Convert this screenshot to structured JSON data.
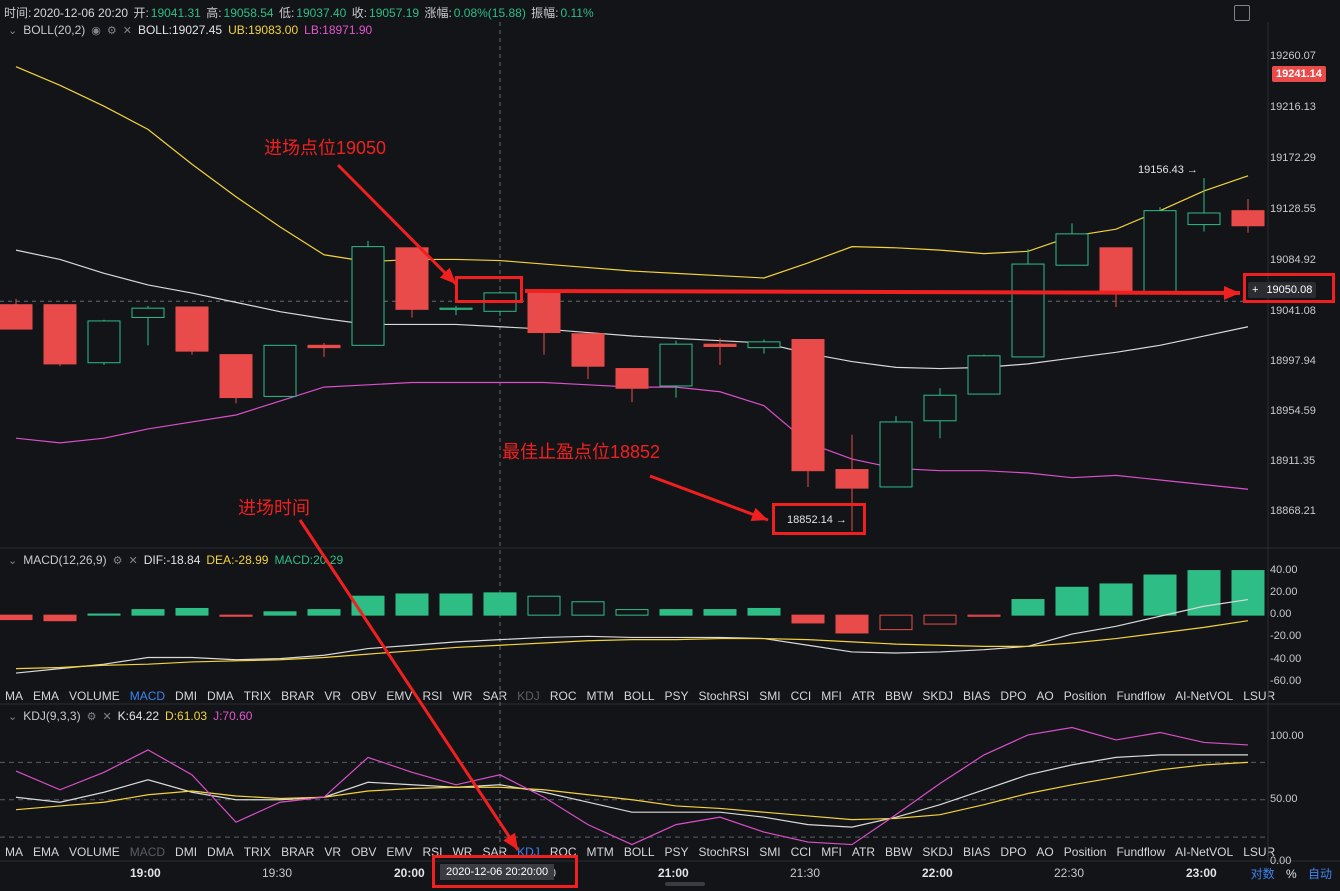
{
  "header": {
    "time_label": "时间:",
    "time_value": "2020-12-06 20:20",
    "open_label": "开:",
    "open_value": "19041.31",
    "high_label": "高:",
    "high_value": "19058.54",
    "low_label": "低:",
    "low_value": "19037.40",
    "close_label": "收:",
    "close_value": "19057.19",
    "change_label": "涨幅:",
    "change_value": "0.08%(15.88)",
    "amp_label": "振幅:",
    "amp_value": "0.11%"
  },
  "boll": {
    "name": "BOLL(20,2)",
    "mid_label": "BOLL:",
    "mid_value": "19027.45",
    "ub_label": "UB:",
    "ub_value": "19083.00",
    "lb_label": "LB:",
    "lb_value": "18971.90"
  },
  "macd": {
    "name": "MACD(12,26,9)",
    "dif_label": "DIF:",
    "dif_value": "-18.84",
    "dea_label": "DEA:",
    "dea_value": "-28.99",
    "macd_label": "MACD:",
    "macd_value": "20.29"
  },
  "kdj": {
    "name": "KDJ(9,3,3)",
    "k_label": "K:",
    "k_value": "64.22",
    "d_label": "D:",
    "d_value": "61.03",
    "j_label": "J:",
    "j_value": "70.60"
  },
  "indicator_tabs": [
    "MA",
    "EMA",
    "VOLUME",
    "MACD",
    "DMI",
    "DMA",
    "TRIX",
    "BRAR",
    "VR",
    "OBV",
    "EMV",
    "RSI",
    "WR",
    "SAR",
    "KDJ",
    "ROC",
    "MTM",
    "BOLL",
    "PSY",
    "StochRSI",
    "SMI",
    "CCI",
    "MFI",
    "ATR",
    "BBW",
    "SKDJ",
    "BIAS",
    "DPO",
    "AO",
    "Position",
    "Fundflow",
    "AI-NetVOL",
    "LSUR"
  ],
  "main_yaxis": [
    "19260.07",
    "19216.13",
    "19172.29",
    "19128.55",
    "19084.92",
    "19041.08",
    "18997.94",
    "18954.59",
    "18911.35",
    "18868.21"
  ],
  "macd_yaxis": [
    "40.00",
    "20.00",
    "0.00",
    "-20.00",
    "-40.00",
    "-60.00"
  ],
  "kdj_yaxis": [
    "100.00",
    "50.00",
    "0.00"
  ],
  "xaxis": [
    "19:00",
    "19:30",
    "20:00",
    "20:30",
    "21:00",
    "21:30",
    "22:00",
    "22:30",
    "23:00"
  ],
  "cursor_time": "2020-12-06 20:20:00",
  "current_price": "19241.14",
  "marked_price": "19050.08",
  "high_mark": "19156.43 →",
  "low_mark": "18852.14 →",
  "annotations": {
    "entry_price": "进场点位19050",
    "take_profit": "最佳止盈点位18852",
    "entry_time": "进场时间"
  },
  "bottom_controls": {
    "log": "对数",
    "pct": "%",
    "auto": "自动"
  },
  "colors": {
    "up": "#2ebd85",
    "down": "#e94b4b",
    "ub": "#f2d33c",
    "mid": "#d9d9d9",
    "lb": "#d94fc9",
    "annotation": "#f02020"
  },
  "chart_data": {
    "type": "candlestick",
    "interval_minutes": 10,
    "first_candle_time": "18:50",
    "candles": [
      {
        "o": 19047,
        "h": 19052,
        "l": 19026,
        "c": 19026
      },
      {
        "o": 19047,
        "h": 19047,
        "l": 18994,
        "c": 18996
      },
      {
        "o": 18997,
        "h": 19034,
        "l": 18995,
        "c": 19033
      },
      {
        "o": 19036,
        "h": 19046,
        "l": 19012,
        "c": 19044
      },
      {
        "o": 19045,
        "h": 19045,
        "l": 19004,
        "c": 19007
      },
      {
        "o": 19004,
        "h": 19004,
        "l": 18962,
        "c": 18967
      },
      {
        "o": 18968,
        "h": 19012,
        "l": 18968,
        "c": 19012
      },
      {
        "o": 19012,
        "h": 19014,
        "l": 19002,
        "c": 19010
      },
      {
        "o": 19012,
        "h": 19102,
        "l": 19012,
        "c": 19097
      },
      {
        "o": 19096,
        "h": 19096,
        "l": 19036,
        "c": 19043
      },
      {
        "o": 19043,
        "h": 19046,
        "l": 19038,
        "c": 19044
      },
      {
        "o": 19041.31,
        "h": 19058.54,
        "l": 19037.4,
        "c": 19057.19
      },
      {
        "o": 19058,
        "h": 19058,
        "l": 19004,
        "c": 19023
      },
      {
        "o": 19022,
        "h": 19022,
        "l": 18983,
        "c": 18994
      },
      {
        "o": 18992,
        "h": 18992,
        "l": 18963,
        "c": 18975
      },
      {
        "o": 18977,
        "h": 19016,
        "l": 18967,
        "c": 19013
      },
      {
        "o": 19013,
        "h": 19018,
        "l": 18995,
        "c": 19011
      },
      {
        "o": 19010,
        "h": 19017,
        "l": 19005,
        "c": 19015
      },
      {
        "o": 19017,
        "h": 19017,
        "l": 18890,
        "c": 18904
      },
      {
        "o": 18905,
        "h": 18935,
        "l": 18852,
        "c": 18889
      },
      {
        "o": 18890,
        "h": 18951,
        "l": 18890,
        "c": 18946
      },
      {
        "o": 18947,
        "h": 18975,
        "l": 18932,
        "c": 18969
      },
      {
        "o": 18970,
        "h": 19004,
        "l": 18970,
        "c": 19003
      },
      {
        "o": 19002,
        "h": 19095,
        "l": 19002,
        "c": 19082
      },
      {
        "o": 19081,
        "h": 19117,
        "l": 19081,
        "c": 19108
      },
      {
        "o": 19096,
        "h": 19096,
        "l": 19045,
        "c": 19058
      },
      {
        "o": 19058,
        "h": 19131,
        "l": 19058,
        "c": 19128
      },
      {
        "o": 19116,
        "h": 19156,
        "l": 19110,
        "c": 19126
      },
      {
        "o": 19128,
        "h": 19138,
        "l": 19109,
        "c": 19115
      }
    ],
    "boll_ub": [
      19252,
      19236,
      19218,
      19198,
      19168,
      19140,
      19114,
      19090,
      19084,
      19086,
      19086,
      19085,
      19082,
      19079,
      19076,
      19074,
      19072,
      19070,
      19083,
      19097,
      19096,
      19094,
      19091,
      19093,
      19106,
      19112,
      19128,
      19145,
      19158
    ],
    "boll_mid": [
      19094,
      19086,
      19074,
      19064,
      19057,
      19049,
      19041,
      19035,
      19030,
      19030,
      19030,
      19028,
      19026,
      19023,
      19020,
      19018,
      19016,
      19014,
      19005,
      18998,
      18993,
      18992,
      18993,
      18996,
      19001,
      19006,
      19012,
      19020,
      19028
    ],
    "boll_lb": [
      18932,
      18928,
      18932,
      18940,
      18946,
      18952,
      18964,
      18976,
      18978,
      18980,
      18980,
      18980,
      18980,
      18978,
      18976,
      18976,
      18972,
      18960,
      18928,
      18914,
      18906,
      18904,
      18904,
      18902,
      18898,
      18900,
      18896,
      18892,
      18888
    ],
    "macd_hist": [
      -4,
      -5,
      1,
      5,
      6,
      -1,
      3,
      5,
      17,
      19,
      19,
      20,
      17,
      12,
      5,
      5,
      5,
      6,
      -7,
      -16,
      -13,
      -8,
      -1,
      14,
      25,
      28,
      36,
      40,
      40
    ],
    "macd_dif": [
      -52,
      -48,
      -44,
      -38,
      -38,
      -40,
      -39,
      -36,
      -30,
      -27,
      -24,
      -22,
      -20,
      -19,
      -20,
      -20,
      -20,
      -21,
      -27,
      -33,
      -34,
      -33,
      -31,
      -28,
      -17,
      -10,
      -1,
      8,
      14
    ],
    "macd_dea": [
      -48,
      -47,
      -45,
      -44,
      -42,
      -41,
      -40,
      -38,
      -35,
      -32,
      -29,
      -27,
      -25,
      -23,
      -22,
      -22,
      -21,
      -21,
      -22,
      -24,
      -26,
      -27,
      -28,
      -28,
      -25,
      -21,
      -16,
      -11,
      -5
    ],
    "kdj_k": [
      52,
      48,
      56,
      66,
      56,
      50,
      50,
      52,
      64,
      62,
      60,
      62,
      56,
      48,
      40,
      40,
      40,
      36,
      30,
      28,
      36,
      46,
      58,
      70,
      78,
      84,
      86,
      86,
      86
    ],
    "kdj_d": [
      42,
      45,
      48,
      54,
      57,
      53,
      51,
      52,
      57,
      59,
      60,
      60,
      58,
      54,
      50,
      45,
      43,
      40,
      37,
      34,
      35,
      38,
      46,
      55,
      62,
      68,
      74,
      78,
      80
    ],
    "kdj_j": [
      73,
      58,
      72,
      90,
      70,
      32,
      48,
      52,
      84,
      72,
      62,
      70,
      52,
      30,
      14,
      30,
      36,
      24,
      16,
      14,
      38,
      63,
      86,
      102,
      108,
      98,
      104,
      96,
      94
    ],
    "ylim_main": [
      18840,
      19275
    ],
    "ylim_macd": [
      -60,
      45
    ],
    "ylim_kdj": [
      0,
      110
    ]
  }
}
